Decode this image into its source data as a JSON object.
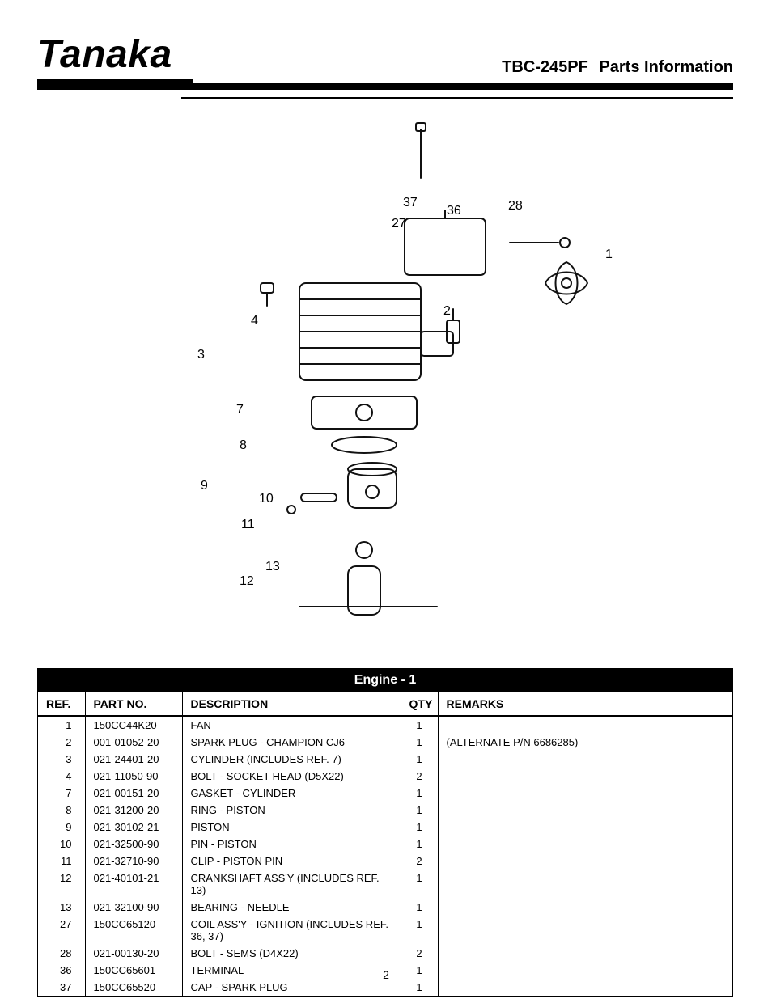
{
  "brand": "Tanaka",
  "model": "TBC-245PF",
  "page_title": "Parts Information",
  "section_title": "Engine - 1",
  "columns": [
    "REF.",
    "PART NO.",
    "DESCRIPTION",
    "QTY",
    "REMARKS"
  ],
  "callouts": [
    "1",
    "2",
    "3",
    "4",
    "7",
    "8",
    "9",
    "10",
    "11",
    "12",
    "13",
    "27",
    "28",
    "36",
    "37"
  ],
  "rows": [
    {
      "ref": "1",
      "part": "150CC44K20",
      "desc": "FAN",
      "qty": "1",
      "rem": ""
    },
    {
      "ref": "2",
      "part": "001-01052-20",
      "desc": "SPARK PLUG - CHAMPION CJ6",
      "qty": "1",
      "rem": "(ALTERNATE P/N 6686285)"
    },
    {
      "ref": "3",
      "part": "021-24401-20",
      "desc": "CYLINDER (INCLUDES REF. 7)",
      "qty": "1",
      "rem": ""
    },
    {
      "ref": "4",
      "part": "021-11050-90",
      "desc": "BOLT - SOCKET HEAD (D5X22)",
      "qty": "2",
      "rem": ""
    },
    {
      "ref": "7",
      "part": "021-00151-20",
      "desc": "GASKET - CYLINDER",
      "qty": "1",
      "rem": ""
    },
    {
      "ref": "8",
      "part": "021-31200-20",
      "desc": "RING - PISTON",
      "qty": "1",
      "rem": ""
    },
    {
      "ref": "9",
      "part": "021-30102-21",
      "desc": "PISTON",
      "qty": "1",
      "rem": ""
    },
    {
      "ref": "10",
      "part": "021-32500-90",
      "desc": "PIN - PISTON",
      "qty": "1",
      "rem": ""
    },
    {
      "ref": "11",
      "part": "021-32710-90",
      "desc": "CLIP - PISTON PIN",
      "qty": "2",
      "rem": ""
    },
    {
      "ref": "12",
      "part": "021-40101-21",
      "desc": "CRANKSHAFT ASS'Y (INCLUDES REF. 13)",
      "qty": "1",
      "rem": ""
    },
    {
      "ref": "13",
      "part": "021-32100-90",
      "desc": "BEARING - NEEDLE",
      "qty": "1",
      "rem": ""
    },
    {
      "ref": "27",
      "part": "150CC65120",
      "desc": "COIL ASS'Y - IGNITION (INCLUDES REF. 36, 37)",
      "qty": "1",
      "rem": ""
    },
    {
      "ref": "28",
      "part": "021-00130-20",
      "desc": "BOLT - SEMS (D4X22)",
      "qty": "2",
      "rem": ""
    },
    {
      "ref": "36",
      "part": "150CC65601",
      "desc": "TERMINAL",
      "qty": "1",
      "rem": ""
    },
    {
      "ref": "37",
      "part": "150CC65520",
      "desc": "CAP - SPARK PLUG",
      "qty": "1",
      "rem": ""
    }
  ],
  "page_number": "2"
}
